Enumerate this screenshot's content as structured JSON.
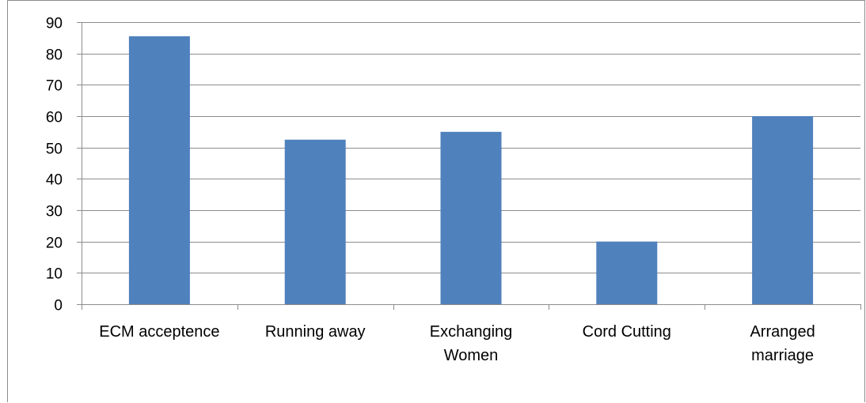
{
  "chart_data": {
    "type": "bar",
    "title": "",
    "xlabel": "",
    "ylabel": "",
    "categories": [
      [
        "ECM acceptence"
      ],
      [
        "Running away"
      ],
      [
        "Exchanging",
        "Women"
      ],
      [
        "Cord Cutting"
      ],
      [
        "Arranged",
        "marriage"
      ]
    ],
    "values": [
      85.5,
      52.5,
      55,
      20,
      60
    ],
    "ylim": [
      0,
      90
    ],
    "yticks": [
      0,
      10,
      20,
      30,
      40,
      50,
      60,
      70,
      80,
      90
    ],
    "grid": true,
    "legend": "none",
    "colors": {
      "bar": "#4f81bd",
      "grid": "#8c8c8c",
      "axis": "#8c8c8c"
    }
  }
}
